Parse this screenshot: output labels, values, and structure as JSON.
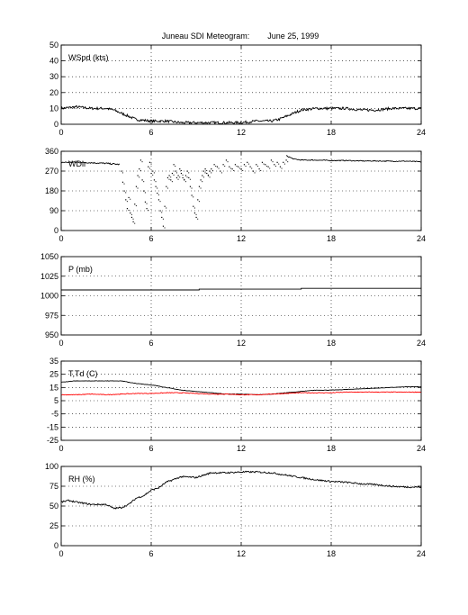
{
  "title": "Juneau SDI Meteogram:        June 25, 1999",
  "chart_data": [
    {
      "type": "line",
      "label": "WSpd (kts)",
      "xlim": [
        0,
        24
      ],
      "ylim": [
        0,
        50
      ],
      "xticks": [
        0,
        6,
        12,
        18,
        24
      ],
      "yticks": [
        0,
        10,
        20,
        30,
        40,
        50
      ],
      "grid": true,
      "series": [
        {
          "color": "#000000",
          "style": "line",
          "noise": 0.8,
          "x": [
            0,
            1,
            2,
            3,
            3.5,
            4,
            4.5,
            5,
            6,
            7,
            8,
            9,
            10,
            11,
            12,
            13,
            14,
            14.5,
            15,
            15.5,
            16,
            17,
            18,
            19,
            20,
            21,
            22,
            23,
            24
          ],
          "y": [
            10,
            11,
            10,
            10,
            9,
            7,
            5,
            3,
            2,
            2,
            1,
            1,
            1,
            1,
            1,
            2,
            2,
            3,
            5,
            7,
            9,
            10,
            10,
            10,
            9,
            9,
            10,
            10,
            10
          ]
        }
      ]
    },
    {
      "type": "scatter",
      "label": "WDir",
      "xlim": [
        0,
        24
      ],
      "ylim": [
        0,
        360
      ],
      "xticks": [
        0,
        6,
        12,
        18,
        24
      ],
      "yticks": [
        0,
        90,
        180,
        270,
        360
      ],
      "grid": true,
      "series": [
        {
          "color": "#000000",
          "style": "line",
          "noise": 3,
          "x": [
            0,
            1,
            2,
            3,
            3.9
          ],
          "y": [
            310,
            310,
            308,
            305,
            300
          ]
        },
        {
          "color": "#000000",
          "style": "dots",
          "noise": 0,
          "x": [
            4,
            4.1,
            4.2,
            4.3,
            4.4,
            4.5,
            4.6,
            4.7,
            4.8,
            4.9,
            5,
            5.1,
            5.2,
            5.3,
            5.4,
            5.5,
            5.6,
            5.7,
            5.8,
            5.9,
            6,
            6.1,
            6.2,
            6.3,
            6.4,
            6.5,
            6.6,
            6.7,
            6.8,
            6.9,
            7,
            7.1,
            7.2,
            7.3,
            7.4,
            7.5,
            7.6,
            7.7,
            7.8,
            7.9,
            8,
            8.1,
            8.2,
            8.3,
            8.4,
            8.5,
            8.6,
            8.7,
            8.8,
            8.9,
            9,
            9.1,
            9.2,
            9.3,
            9.4,
            9.5,
            9.6,
            9.7,
            9.8,
            9.9,
            10,
            10.2,
            10.4,
            10.6,
            10.8,
            11,
            11.2,
            11.4,
            11.6,
            11.8,
            12,
            12.2,
            12.4,
            12.6,
            12.8,
            13,
            13.2,
            13.4,
            13.6,
            13.8,
            14,
            14.2,
            14.4,
            14.6,
            14.8,
            15
          ],
          "y": [
            270,
            220,
            180,
            140,
            100,
            150,
            80,
            60,
            40,
            120,
            200,
            250,
            280,
            320,
            230,
            180,
            130,
            100,
            290,
            310,
            260,
            270,
            230,
            200,
            170,
            140,
            90,
            60,
            20,
            110,
            200,
            240,
            250,
            230,
            260,
            300,
            270,
            240,
            250,
            280,
            260,
            240,
            230,
            250,
            270,
            240,
            200,
            160,
            110,
            80,
            60,
            140,
            200,
            230,
            250,
            270,
            280,
            260,
            250,
            270,
            280,
            300,
            290,
            270,
            300,
            320,
            290,
            280,
            300,
            290,
            280,
            300,
            310,
            290,
            270,
            300,
            280,
            310,
            300,
            290,
            320,
            300,
            310,
            290,
            310,
            320
          ]
        },
        {
          "color": "#000000",
          "style": "line",
          "noise": 2,
          "x": [
            15,
            15.5,
            16,
            17,
            18,
            19,
            20,
            21,
            22,
            23,
            24
          ],
          "y": [
            340,
            325,
            320,
            320,
            318,
            318,
            316,
            316,
            315,
            315,
            312
          ]
        }
      ]
    },
    {
      "type": "line",
      "label": "P (mb)",
      "xlim": [
        0,
        24
      ],
      "ylim": [
        950,
        1050
      ],
      "xticks": [
        0,
        6,
        12,
        18,
        24
      ],
      "yticks": [
        950,
        975,
        1000,
        1025,
        1050
      ],
      "grid": true,
      "series": [
        {
          "color": "#000000",
          "style": "step",
          "x": [
            0,
            6,
            9.2,
            16,
            24
          ],
          "y": [
            1007.5,
            1007.5,
            1008.5,
            1009.5,
            1009.5
          ]
        }
      ]
    },
    {
      "type": "line",
      "label": "T,Td (C)",
      "xlim": [
        0,
        24
      ],
      "ylim": [
        -25,
        35
      ],
      "xticks": [
        0,
        6,
        12,
        18,
        24
      ],
      "yticks": [
        -25,
        -15,
        -5,
        5,
        15,
        25,
        35
      ],
      "grid": true,
      "series": [
        {
          "color": "#000000",
          "style": "line",
          "noise": 0.15,
          "x": [
            0,
            1,
            2,
            3,
            4,
            5,
            6,
            7,
            8,
            9,
            10,
            11,
            12,
            13,
            14,
            15,
            16,
            17,
            18,
            19,
            20,
            21,
            22,
            23,
            24
          ],
          "y": [
            19,
            20,
            20,
            20,
            20,
            18,
            17,
            15,
            13,
            12,
            11,
            10,
            10,
            9.5,
            10,
            11,
            12,
            13,
            13,
            13.5,
            14,
            14.5,
            15,
            15.5,
            15.5
          ]
        },
        {
          "color": "#ff0000",
          "style": "line",
          "noise": 0.25,
          "x": [
            0,
            1,
            2,
            3,
            4,
            5,
            6,
            7,
            8,
            9,
            10,
            11,
            12,
            13,
            14,
            15,
            16,
            17,
            18,
            19,
            20,
            21,
            22,
            23,
            24
          ],
          "y": [
            9.5,
            9.5,
            10,
            9.5,
            10,
            10.5,
            10.5,
            11,
            11,
            10.5,
            10,
            10,
            9.5,
            9.5,
            10,
            10.5,
            11,
            11,
            11,
            11.5,
            11.5,
            11.5,
            11.5,
            11.5,
            11.5
          ]
        }
      ]
    },
    {
      "type": "line",
      "label": "RH (%)",
      "xlim": [
        0,
        24
      ],
      "ylim": [
        0,
        100
      ],
      "xticks": [
        0,
        6,
        12,
        18,
        24
      ],
      "yticks": [
        0,
        25,
        50,
        75,
        100
      ],
      "grid": true,
      "series": [
        {
          "color": "#000000",
          "style": "line",
          "noise": 1,
          "x": [
            0,
            0.5,
            1,
            2,
            3,
            3.5,
            4,
            4.5,
            5,
            5.5,
            6,
            6.5,
            7,
            8,
            9,
            10,
            11,
            12,
            13,
            14,
            15,
            16,
            17,
            18,
            19,
            20,
            21,
            22,
            23,
            24
          ],
          "y": [
            55,
            57,
            55,
            52,
            52,
            47,
            48,
            52,
            60,
            63,
            70,
            73,
            80,
            87,
            86,
            92,
            92,
            93,
            93,
            92,
            89,
            86,
            83,
            81,
            80,
            78,
            77,
            75,
            74,
            74
          ]
        }
      ]
    }
  ]
}
